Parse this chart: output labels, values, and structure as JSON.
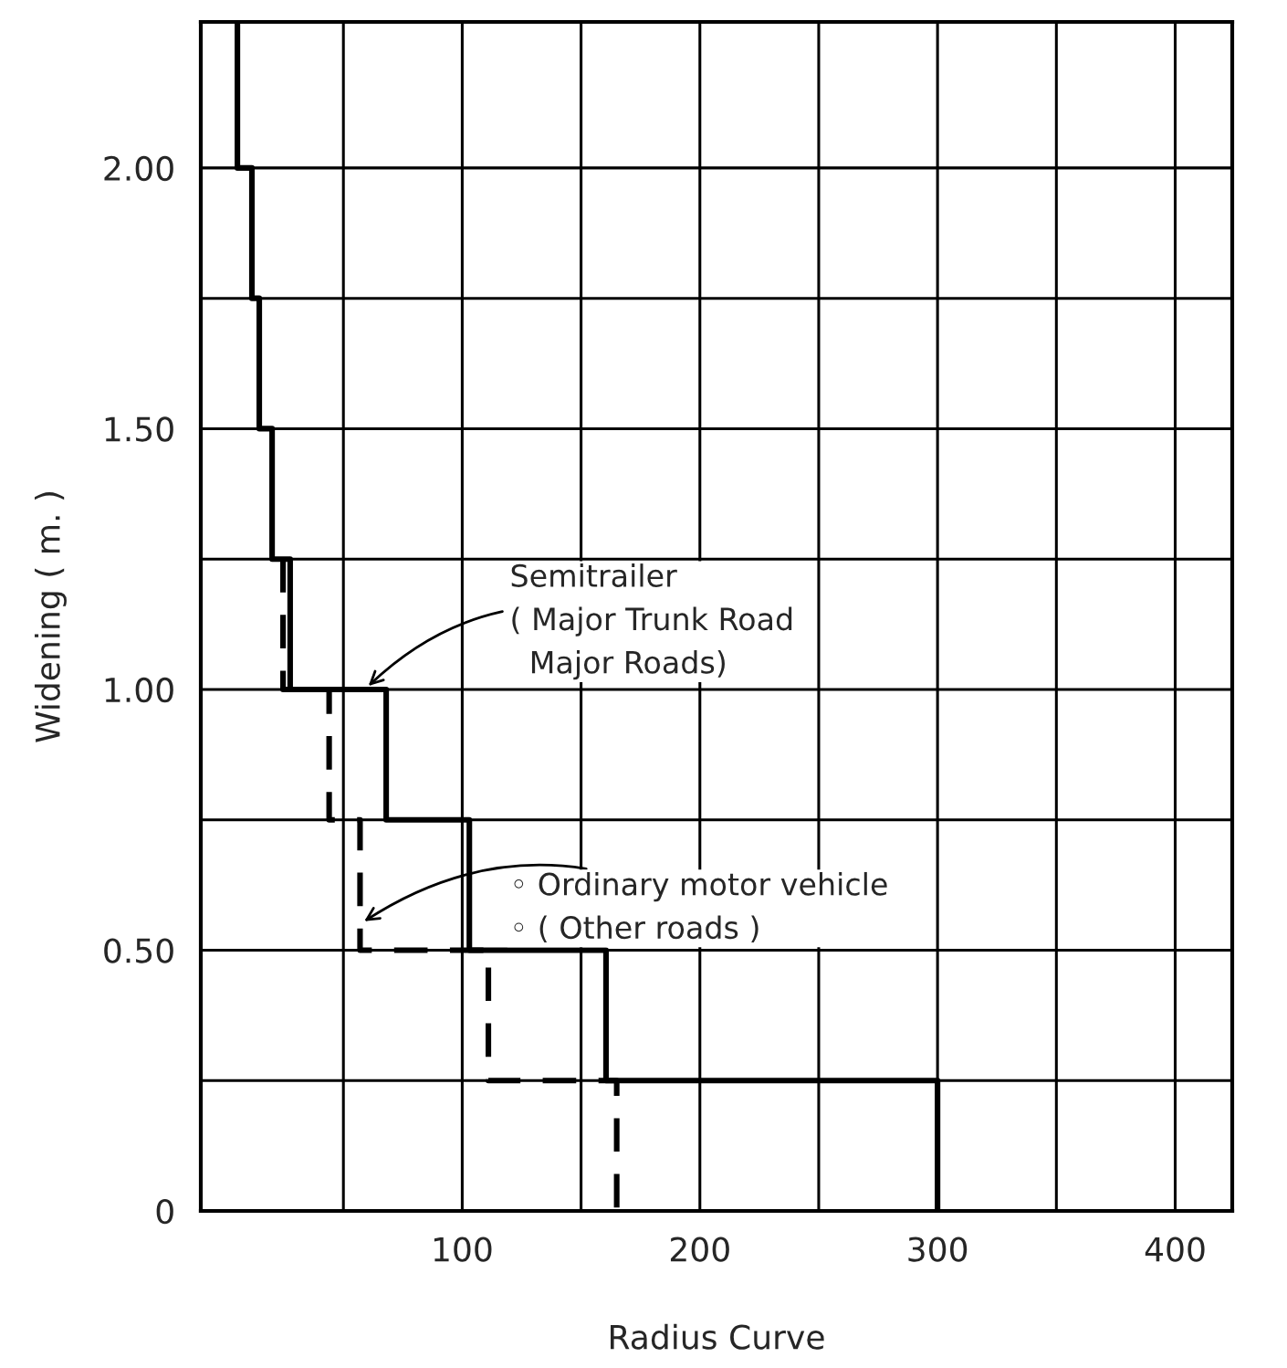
{
  "chart_data": {
    "type": "step",
    "xlabel": "Radius Curve",
    "ylabel": "Widening ( m. )",
    "xlim": [
      -10,
      424
    ],
    "ylim": [
      0,
      2.28
    ],
    "xticks": [
      {
        "value": 50,
        "label": null
      },
      100,
      {
        "value": 150,
        "label": null
      },
      200,
      {
        "value": 250,
        "label": null
      },
      300,
      {
        "value": 350,
        "label": null
      },
      400
    ],
    "yticks": [
      0,
      {
        "value": 0.25,
        "label": null
      },
      {
        "value": 0.5,
        "label": "0.50"
      },
      {
        "value": 0.75,
        "label": null
      },
      {
        "value": 1.0,
        "label": "1.00"
      },
      {
        "value": 1.25,
        "label": null
      },
      {
        "value": 1.5,
        "label": "1.50"
      },
      {
        "value": 1.75,
        "label": null
      },
      {
        "value": 2.0,
        "label": "2.00"
      }
    ],
    "grid": true,
    "legend": false,
    "series": [
      {
        "color": "#000000",
        "line_style": "solid",
        "x": [
          5.4,
          5.4,
          11.5,
          14.6,
          20,
          27.6,
          68,
          103,
          160.5,
          300
        ],
        "values": [
          2.28,
          2.0,
          1.75,
          1.5,
          1.25,
          1.0,
          0.75,
          0.5,
          0.25,
          0
        ]
      },
      {
        "color": "#000000",
        "line_style": "dashed",
        "x": [
          24.6,
          24.6,
          44,
          57,
          111,
          165
        ],
        "values": [
          1.25,
          1.0,
          0.75,
          0.5,
          0.25,
          0
        ]
      }
    ],
    "annotations": [
      {
        "text": "Semitrailer\n( Major Trunk Road\n  Major Roads)",
        "x": 59,
        "y": 1.0
      },
      {
        "text": "◦ Ordinary motor vehicle\n◦ ( Other roads )",
        "x": 57,
        "y": 0.55
      }
    ]
  }
}
